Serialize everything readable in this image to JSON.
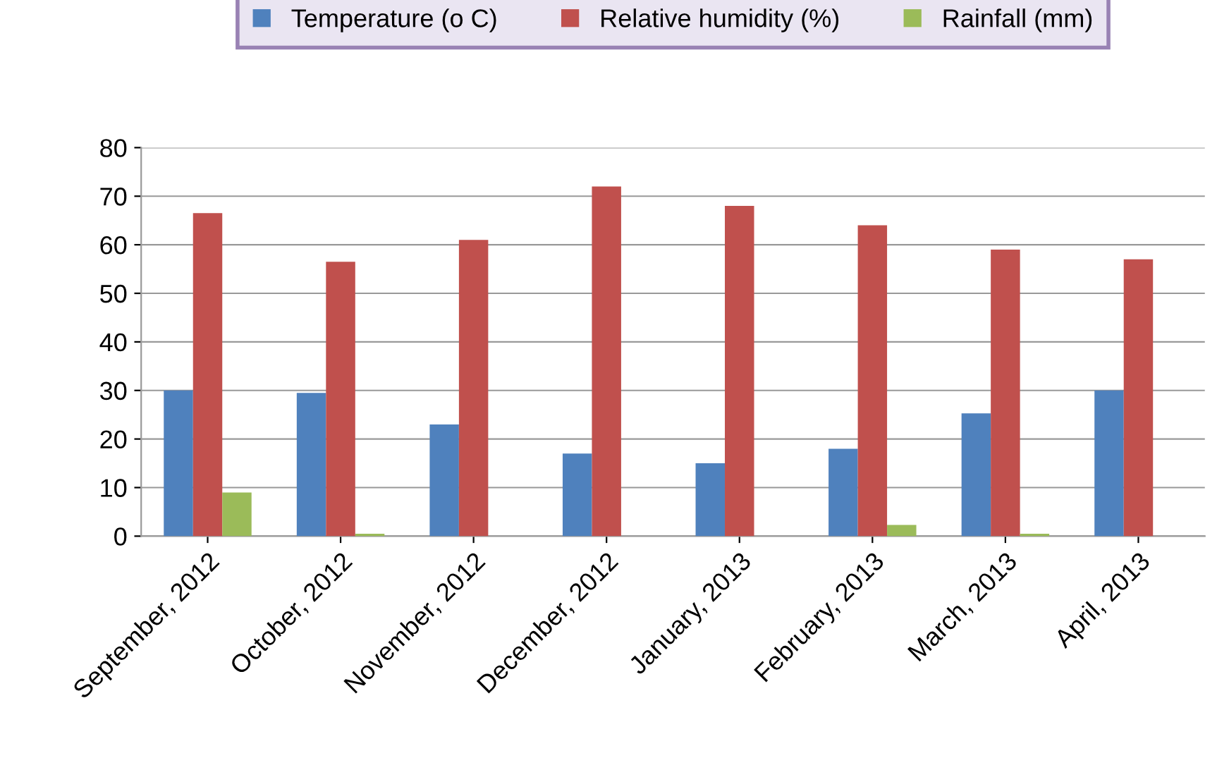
{
  "chart_data": {
    "type": "bar",
    "categories": [
      "September, 2012",
      "October, 2012",
      "November, 2012",
      "December, 2012",
      "January, 2013",
      "February, 2013",
      "March, 2013",
      "April, 2013"
    ],
    "series": [
      {
        "name": "Temperature (o C)",
        "color": "#4f81bd",
        "values": [
          30,
          29.5,
          23,
          17,
          15,
          18,
          25.3,
          30
        ]
      },
      {
        "name": "Relative humidity (%)",
        "color": "#c0504d",
        "values": [
          66.5,
          56.5,
          61,
          72,
          68,
          64,
          59,
          57
        ]
      },
      {
        "name": "Rainfall (mm)",
        "color": "#9bbb59",
        "values": [
          9,
          0.5,
          0,
          0,
          0,
          2.3,
          0.5,
          0
        ]
      }
    ],
    "ylim": [
      0,
      80
    ],
    "yticks": [
      0,
      10,
      20,
      30,
      40,
      50,
      60,
      70,
      80
    ],
    "grid": "y",
    "legend": "top"
  }
}
